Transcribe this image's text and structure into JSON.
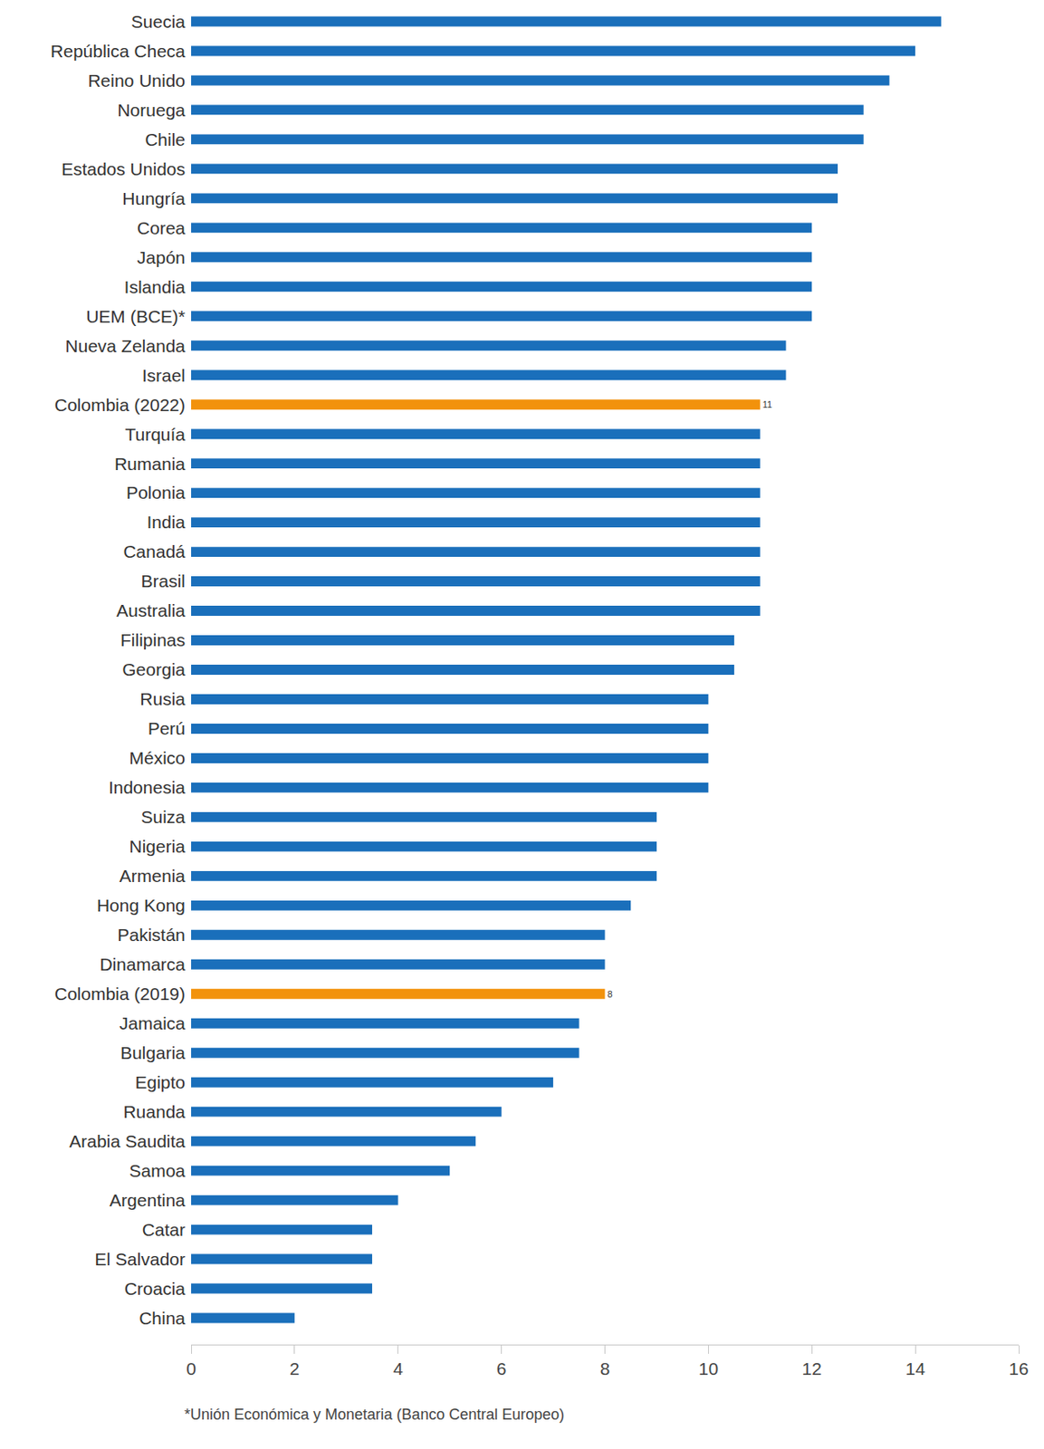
{
  "chart_data": {
    "type": "bar",
    "orientation": "horizontal",
    "categories": [
      "Suecia",
      "República Checa",
      "Reino Unido",
      "Noruega",
      "Chile",
      "Estados Unidos",
      "Hungría",
      "Corea",
      "Japón",
      "Islandia",
      "UEM (BCE)*",
      "Nueva Zelanda",
      "Israel",
      "Colombia (2022)",
      "Turquía",
      "Rumania",
      "Polonia",
      "India",
      "Canadá",
      "Brasil",
      "Australia",
      "Filipinas",
      "Georgia",
      "Rusia",
      "Perú",
      "México",
      "Indonesia",
      "Suiza",
      "Nigeria",
      "Armenia",
      "Hong Kong",
      "Pakistán",
      "Dinamarca",
      "Colombia (2019)",
      "Jamaica",
      "Bulgaria",
      "Egipto",
      "Ruanda",
      "Arabia Saudita",
      "Samoa",
      "Argentina",
      "Catar",
      "El Salvador",
      "Croacia",
      "China"
    ],
    "values": [
      14.5,
      14,
      13.5,
      13,
      13,
      12.5,
      12.5,
      12,
      12,
      12,
      12,
      11.5,
      11.5,
      11,
      11,
      11,
      11,
      11,
      11,
      11,
      11,
      10.5,
      10.5,
      10,
      10,
      10,
      10,
      9,
      9,
      9,
      8.5,
      8,
      8,
      8,
      7.5,
      7.5,
      7,
      6,
      5.5,
      5,
      4,
      3.5,
      3.5,
      3.5,
      2
    ],
    "value_labels": [
      null,
      null,
      null,
      null,
      null,
      null,
      null,
      null,
      null,
      null,
      null,
      null,
      null,
      "11",
      null,
      null,
      null,
      null,
      null,
      null,
      null,
      null,
      null,
      null,
      null,
      null,
      null,
      null,
      null,
      null,
      null,
      null,
      null,
      "8",
      null,
      null,
      null,
      null,
      null,
      null,
      null,
      null,
      null,
      null,
      null
    ],
    "colors": [
      "#1a6fbb",
      "#1a6fbb",
      "#1a6fbb",
      "#1a6fbb",
      "#1a6fbb",
      "#1a6fbb",
      "#1a6fbb",
      "#1a6fbb",
      "#1a6fbb",
      "#1a6fbb",
      "#1a6fbb",
      "#1a6fbb",
      "#1a6fbb",
      "#f2920c",
      "#1a6fbb",
      "#1a6fbb",
      "#1a6fbb",
      "#1a6fbb",
      "#1a6fbb",
      "#1a6fbb",
      "#1a6fbb",
      "#1a6fbb",
      "#1a6fbb",
      "#1a6fbb",
      "#1a6fbb",
      "#1a6fbb",
      "#1a6fbb",
      "#1a6fbb",
      "#1a6fbb",
      "#1a6fbb",
      "#1a6fbb",
      "#1a6fbb",
      "#1a6fbb",
      "#f2920c",
      "#1a6fbb",
      "#1a6fbb",
      "#1a6fbb",
      "#1a6fbb",
      "#1a6fbb",
      "#1a6fbb",
      "#1a6fbb",
      "#1a6fbb",
      "#1a6fbb",
      "#1a6fbb",
      "#1a6fbb"
    ],
    "xlim": [
      0,
      16
    ],
    "xticks": [
      0,
      2,
      4,
      6,
      8,
      10,
      12,
      14,
      16
    ],
    "grid": false,
    "annotations": [
      "*Unión Económica y Monetaria (Banco Central Europeo)"
    ]
  }
}
